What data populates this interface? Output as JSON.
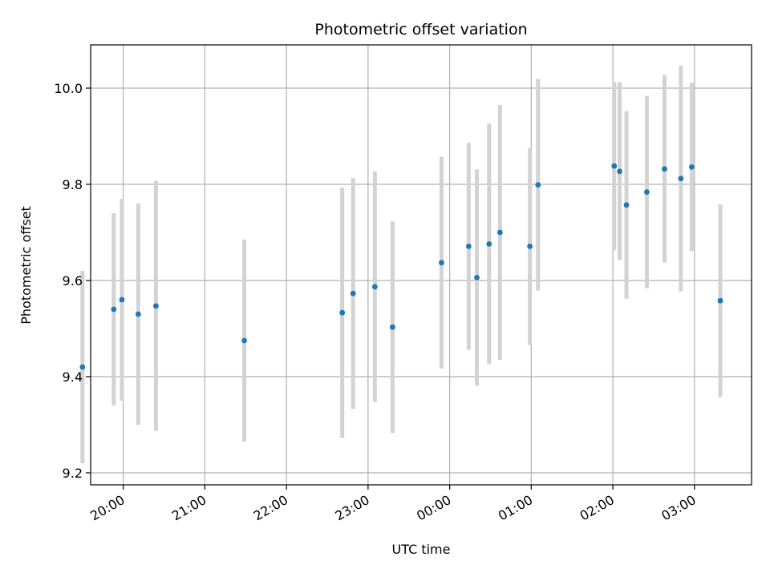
{
  "chart_data": {
    "type": "scatter",
    "title": "Photometric offset variation",
    "xlabel": "UTC time",
    "ylabel": "Photometric offset",
    "x_ticks": [
      "20:00",
      "21:00",
      "22:00",
      "23:00",
      "00:00",
      "01:00",
      "02:00",
      "03:00"
    ],
    "y_ticks": [
      "9.2",
      "9.4",
      "9.6",
      "9.8",
      "10.0"
    ],
    "xlim": [
      "19:36",
      "03:42"
    ],
    "ylim": [
      9.175,
      10.09
    ],
    "grid": true,
    "colors": {
      "point": "#1f77b4",
      "errorbar": "#d3d3d3",
      "grid": "#b0b0b0"
    },
    "points": [
      {
        "x": "19:30",
        "y": 9.42,
        "err": 0.2
      },
      {
        "x": "19:53",
        "y": 9.54,
        "err": 0.2
      },
      {
        "x": "19:59",
        "y": 9.56,
        "err": 0.21
      },
      {
        "x": "20:11",
        "y": 9.53,
        "err": 0.23
      },
      {
        "x": "20:24",
        "y": 9.547,
        "err": 0.26
      },
      {
        "x": "21:29",
        "y": 9.475,
        "err": 0.21
      },
      {
        "x": "22:41",
        "y": 9.533,
        "err": 0.26
      },
      {
        "x": "22:49",
        "y": 9.573,
        "err": 0.24
      },
      {
        "x": "23:05",
        "y": 9.587,
        "err": 0.24
      },
      {
        "x": "23:18",
        "y": 9.503,
        "err": 0.22
      },
      {
        "x": "23:54",
        "y": 9.637,
        "err": 0.22
      },
      {
        "x": "00:14",
        "y": 9.671,
        "err": 0.215
      },
      {
        "x": "00:20",
        "y": 9.606,
        "err": 0.225
      },
      {
        "x": "00:29",
        "y": 9.676,
        "err": 0.25
      },
      {
        "x": "00:37",
        "y": 9.7,
        "err": 0.265
      },
      {
        "x": "00:59",
        "y": 9.671,
        "err": 0.205
      },
      {
        "x": "01:05",
        "y": 9.799,
        "err": 0.22
      },
      {
        "x": "02:01",
        "y": 9.838,
        "err": 0.175
      },
      {
        "x": "02:05",
        "y": 9.827,
        "err": 0.185
      },
      {
        "x": "02:10",
        "y": 9.757,
        "err": 0.195
      },
      {
        "x": "02:25",
        "y": 9.784,
        "err": 0.2
      },
      {
        "x": "02:38",
        "y": 9.832,
        "err": 0.195
      },
      {
        "x": "02:50",
        "y": 9.812,
        "err": 0.235
      },
      {
        "x": "02:58",
        "y": 9.836,
        "err": 0.175
      },
      {
        "x": "03:19",
        "y": 9.558,
        "err": 0.2
      }
    ]
  }
}
